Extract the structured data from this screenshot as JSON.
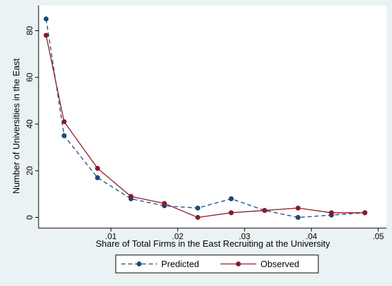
{
  "chart_data": {
    "type": "line",
    "title": "",
    "xlabel": "Share of Total Firms in the East Recruiting at the University",
    "ylabel": "Number of Universities in the East",
    "xlim": [
      0,
      0.05
    ],
    "ylim": [
      0,
      85
    ],
    "x_ticks": [
      0.01,
      0.02,
      0.03,
      0.04,
      0.05
    ],
    "x_tick_labels": [
      ".01",
      ".02",
      ".03",
      ".04",
      ".05"
    ],
    "y_ticks": [
      0,
      20,
      40,
      60,
      80
    ],
    "y_tick_labels": [
      "0",
      "20",
      "40",
      "60",
      "80"
    ],
    "grid": false,
    "legend_position": "bottom",
    "series": [
      {
        "name": "Predicted",
        "style": "dashed",
        "color": "#1a4a7a",
        "x": [
          0.0003,
          0.003,
          0.008,
          0.013,
          0.018,
          0.023,
          0.028,
          0.033,
          0.038,
          0.043,
          0.048
        ],
        "y": [
          85,
          35,
          17,
          8,
          5,
          4,
          8,
          3,
          0,
          1,
          2
        ]
      },
      {
        "name": "Observed",
        "style": "solid",
        "color": "#8b1a2b",
        "x": [
          0.0003,
          0.003,
          0.008,
          0.013,
          0.018,
          0.023,
          0.028,
          0.033,
          0.038,
          0.043,
          0.048
        ],
        "y": [
          78,
          41,
          21,
          9,
          6,
          0,
          2,
          3,
          4,
          2,
          2
        ]
      }
    ]
  }
}
